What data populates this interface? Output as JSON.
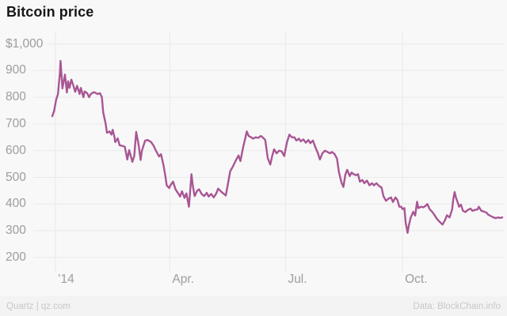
{
  "header": {
    "title": "Bitcoin price"
  },
  "footer": {
    "left": "Quartz | qz.com",
    "right": "Data: BlockChain.info"
  },
  "colors": {
    "background": "#f8f8f8",
    "grid": "#e9e9e9",
    "line": "#a85694",
    "title": "#171717",
    "axis_label": "#9d9d9d",
    "footer_text": "#c7c7c7",
    "footer_bg": "#f3f3f3"
  },
  "chart_data": {
    "type": "line",
    "title": "Bitcoin price",
    "xlabel": "",
    "ylabel": "",
    "currency": "USD",
    "x_unit": "days since Jan 1, 2014",
    "grid": true,
    "legend_position": "none",
    "xlim_days": [
      -6,
      356
    ],
    "ylim": [
      150,
      1045
    ],
    "x_ticks": [
      {
        "label": "’14",
        "day": 0
      },
      {
        "label": "Apr.",
        "day": 90
      },
      {
        "label": "Jul.",
        "day": 181
      },
      {
        "label": "Oct.",
        "day": 273
      }
    ],
    "y_ticks": [
      {
        "label": "$1,000",
        "value": 1000
      },
      {
        "label": "900",
        "value": 900
      },
      {
        "label": "800",
        "value": 800
      },
      {
        "label": "700",
        "value": 700
      },
      {
        "label": "600",
        "value": 600
      },
      {
        "label": "500",
        "value": 500
      },
      {
        "label": "400",
        "value": 400
      },
      {
        "label": "300",
        "value": 300
      },
      {
        "label": "200",
        "value": 200
      }
    ],
    "series": [
      {
        "name": "Bitcoin price (USD)",
        "color": "#a85694",
        "points": [
          [
            -2.5,
            729
          ],
          [
            -1,
            750
          ],
          [
            0.5,
            790
          ],
          [
            2,
            812
          ],
          [
            2.5,
            840
          ],
          [
            3.5,
            890
          ],
          [
            4,
            936
          ],
          [
            5.5,
            833
          ],
          [
            7.5,
            885
          ],
          [
            9,
            818
          ],
          [
            10,
            860
          ],
          [
            11,
            835
          ],
          [
            12.5,
            866
          ],
          [
            14,
            845
          ],
          [
            15.5,
            820
          ],
          [
            17,
            843
          ],
          [
            19,
            812
          ],
          [
            20,
            835
          ],
          [
            22,
            800
          ],
          [
            23,
            822
          ],
          [
            25,
            815
          ],
          [
            26.5,
            800
          ],
          [
            27.5,
            810
          ],
          [
            29.5,
            818
          ],
          [
            31,
            818
          ],
          [
            33,
            812
          ],
          [
            35,
            815
          ],
          [
            36.5,
            800
          ],
          [
            37.5,
            745
          ],
          [
            39.5,
            700
          ],
          [
            40.5,
            667
          ],
          [
            42.5,
            672
          ],
          [
            44,
            660
          ],
          [
            45,
            678
          ],
          [
            46.5,
            650
          ],
          [
            47,
            632
          ],
          [
            49,
            646
          ],
          [
            50.5,
            620
          ],
          [
            52.5,
            618
          ],
          [
            54.5,
            615
          ],
          [
            56.5,
            567
          ],
          [
            58,
            602
          ],
          [
            60.5,
            558
          ],
          [
            62,
            580
          ],
          [
            63.5,
            670
          ],
          [
            64.5,
            645
          ],
          [
            65.5,
            620
          ],
          [
            67,
            565
          ],
          [
            68,
            600
          ],
          [
            70.5,
            637
          ],
          [
            72.5,
            640
          ],
          [
            75,
            633
          ],
          [
            77,
            620
          ],
          [
            79,
            600
          ],
          [
            81.5,
            578
          ],
          [
            83,
            587
          ],
          [
            85,
            545
          ],
          [
            86.5,
            504
          ],
          [
            87.5,
            470
          ],
          [
            89.5,
            460
          ],
          [
            90.5,
            470
          ],
          [
            92.5,
            484
          ],
          [
            94.5,
            455
          ],
          [
            96.5,
            440
          ],
          [
            98,
            428
          ],
          [
            99.5,
            448
          ],
          [
            101.5,
            423
          ],
          [
            103,
            440
          ],
          [
            105,
            390
          ],
          [
            107,
            512
          ],
          [
            108,
            470
          ],
          [
            109.5,
            430
          ],
          [
            111.5,
            450
          ],
          [
            113,
            455
          ],
          [
            115,
            438
          ],
          [
            117,
            430
          ],
          [
            119,
            442
          ],
          [
            120.5,
            428
          ],
          [
            122.5,
            438
          ],
          [
            124.5,
            425
          ],
          [
            126.5,
            440
          ],
          [
            128,
            458
          ],
          [
            130,
            448
          ],
          [
            132,
            440
          ],
          [
            134,
            432
          ],
          [
            135.5,
            470
          ],
          [
            137.5,
            523
          ],
          [
            139.5,
            540
          ],
          [
            141.5,
            560
          ],
          [
            144,
            582
          ],
          [
            145.5,
            561
          ],
          [
            147.5,
            610
          ],
          [
            149.5,
            650
          ],
          [
            150.5,
            672
          ],
          [
            152,
            655
          ],
          [
            154,
            650
          ],
          [
            155.5,
            645
          ],
          [
            157.5,
            650
          ],
          [
            159.5,
            648
          ],
          [
            161.5,
            655
          ],
          [
            163,
            650
          ],
          [
            165,
            640
          ],
          [
            167,
            572
          ],
          [
            169,
            548
          ],
          [
            170.5,
            580
          ],
          [
            172,
            605
          ],
          [
            174,
            590
          ],
          [
            176,
            600
          ],
          [
            178,
            597
          ],
          [
            180,
            580
          ],
          [
            182,
            630
          ],
          [
            184,
            660
          ],
          [
            186,
            650
          ],
          [
            188,
            650
          ],
          [
            189.5,
            638
          ],
          [
            191.5,
            645
          ],
          [
            193,
            635
          ],
          [
            195,
            642
          ],
          [
            197,
            630
          ],
          [
            199,
            640
          ],
          [
            200.5,
            628
          ],
          [
            202.5,
            638
          ],
          [
            204.5,
            612
          ],
          [
            206.5,
            590
          ],
          [
            208,
            567
          ],
          [
            210,
            590
          ],
          [
            212,
            600
          ],
          [
            214,
            595
          ],
          [
            216,
            590
          ],
          [
            217.5,
            595
          ],
          [
            219.5,
            588
          ],
          [
            221.5,
            570
          ],
          [
            223,
            520
          ],
          [
            225,
            480
          ],
          [
            226.5,
            464
          ],
          [
            228,
            510
          ],
          [
            229.5,
            528
          ],
          [
            231.5,
            505
          ],
          [
            233,
            518
          ],
          [
            234.5,
            512
          ],
          [
            236.5,
            508
          ],
          [
            238,
            512
          ],
          [
            239.5,
            484
          ],
          [
            241.5,
            490
          ],
          [
            243,
            478
          ],
          [
            245,
            488
          ],
          [
            247,
            470
          ],
          [
            249,
            478
          ],
          [
            250.5,
            470
          ],
          [
            252.5,
            478
          ],
          [
            254.5,
            468
          ],
          [
            256.5,
            462
          ],
          [
            258,
            430
          ],
          [
            260,
            412
          ],
          [
            262,
            420
          ],
          [
            264,
            425
          ],
          [
            265.5,
            408
          ],
          [
            267.5,
            425
          ],
          [
            269,
            415
          ],
          [
            270.5,
            390
          ],
          [
            272,
            390
          ],
          [
            273,
            381
          ],
          [
            274.5,
            385
          ],
          [
            275.5,
            330
          ],
          [
            277,
            292
          ],
          [
            278,
            320
          ],
          [
            279.5,
            350
          ],
          [
            281.5,
            371
          ],
          [
            283,
            357
          ],
          [
            284.5,
            409
          ],
          [
            285.5,
            385
          ],
          [
            287.5,
            390
          ],
          [
            289.5,
            388
          ],
          [
            291.5,
            395
          ],
          [
            292.5,
            400
          ],
          [
            294.5,
            380
          ],
          [
            296.5,
            370
          ],
          [
            298,
            360
          ],
          [
            300,
            345
          ],
          [
            302,
            335
          ],
          [
            303,
            330
          ],
          [
            304.5,
            323
          ],
          [
            306.5,
            340
          ],
          [
            308,
            358
          ],
          [
            310,
            350
          ],
          [
            312,
            380
          ],
          [
            313,
            420
          ],
          [
            314,
            445
          ],
          [
            315,
            425
          ],
          [
            316.5,
            405
          ],
          [
            317.5,
            390
          ],
          [
            319,
            398
          ],
          [
            320.5,
            375
          ],
          [
            322.5,
            370
          ],
          [
            324.5,
            378
          ],
          [
            326.5,
            383
          ],
          [
            328,
            375
          ],
          [
            330,
            378
          ],
          [
            332,
            380
          ],
          [
            333,
            390
          ],
          [
            335,
            375
          ],
          [
            337,
            372
          ],
          [
            339,
            368
          ],
          [
            340.5,
            360
          ],
          [
            342.5,
            355
          ],
          [
            344.5,
            350
          ],
          [
            346.5,
            347
          ],
          [
            348,
            350
          ],
          [
            350,
            348
          ],
          [
            351.5,
            350
          ]
        ]
      }
    ]
  }
}
